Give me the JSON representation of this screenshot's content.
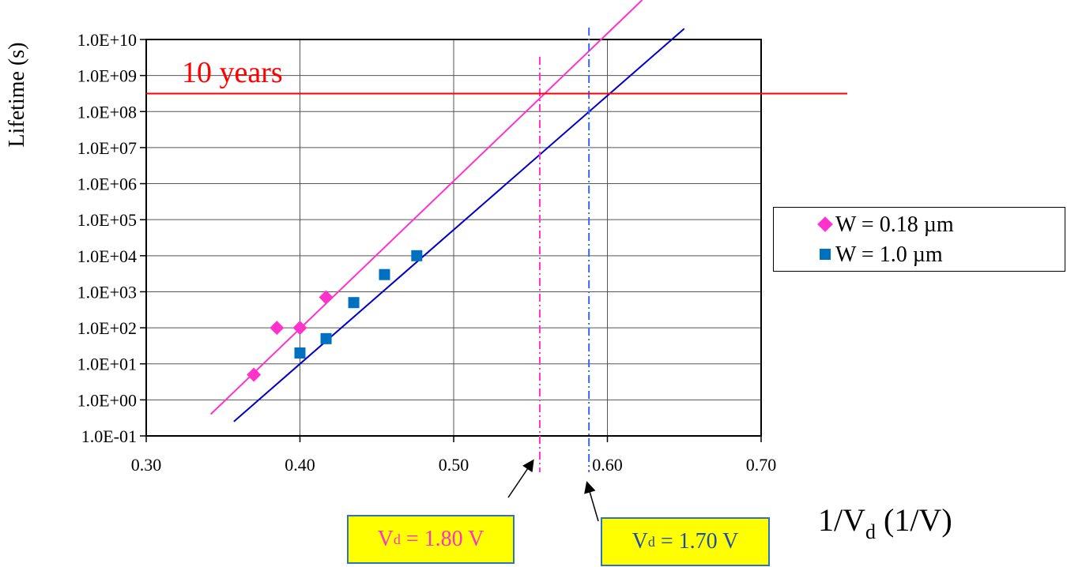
{
  "chart_data": {
    "type": "scatter",
    "yscale": "log",
    "xlim": [
      0.3,
      0.7
    ],
    "ylim": [
      0.1,
      10000000000.0
    ],
    "grid": true,
    "ylabel": "Lifetime (s)",
    "xlabel_main": "1/V",
    "xlabel_sub": "d",
    "xlabel_rest": " (1/V)",
    "x_ticks": [
      "0.30",
      "0.40",
      "0.50",
      "0.60",
      "0.70"
    ],
    "y_ticks": [
      "1.0E-01",
      "1.0E+00",
      "1.0E+01",
      "1.0E+02",
      "1.0E+03",
      "1.0E+04",
      "1.0E+05",
      "1.0E+06",
      "1.0E+07",
      "1.0E+08",
      "1.0E+09",
      "1.0E+10"
    ],
    "legend_position": "right",
    "series": [
      {
        "name": "W = 0.18 µm",
        "marker": "diamond",
        "color": "#ff33cc",
        "points": [
          [
            0.37,
            5
          ],
          [
            0.385,
            100
          ],
          [
            0.4,
            100
          ],
          [
            0.417,
            700
          ]
        ],
        "fit": [
          [
            0.342,
            0.4
          ],
          [
            0.635,
            400000000000.0
          ]
        ]
      },
      {
        "name": "W = 1.0 µm",
        "marker": "square",
        "color": "#0070c0",
        "points": [
          [
            0.4,
            20
          ],
          [
            0.417,
            50
          ],
          [
            0.435,
            500
          ],
          [
            0.455,
            3000
          ],
          [
            0.476,
            10000
          ]
        ],
        "fit": [
          [
            0.357,
            0.25
          ],
          [
            0.65,
            20000000000.0
          ]
        ]
      }
    ],
    "reference_line": {
      "label": "10 years",
      "value": 315000000.0,
      "color": "#ff0000"
    },
    "vertical_markers": [
      {
        "x": 0.556,
        "color": "#ff33cc",
        "label_main": "V",
        "label_sub": "d",
        "label_rest": " = 1.80 V"
      },
      {
        "x": 0.588,
        "color": "#3366ff",
        "label_main": "V",
        "label_sub": "d",
        "label_rest": " = 1.70 V"
      }
    ]
  }
}
